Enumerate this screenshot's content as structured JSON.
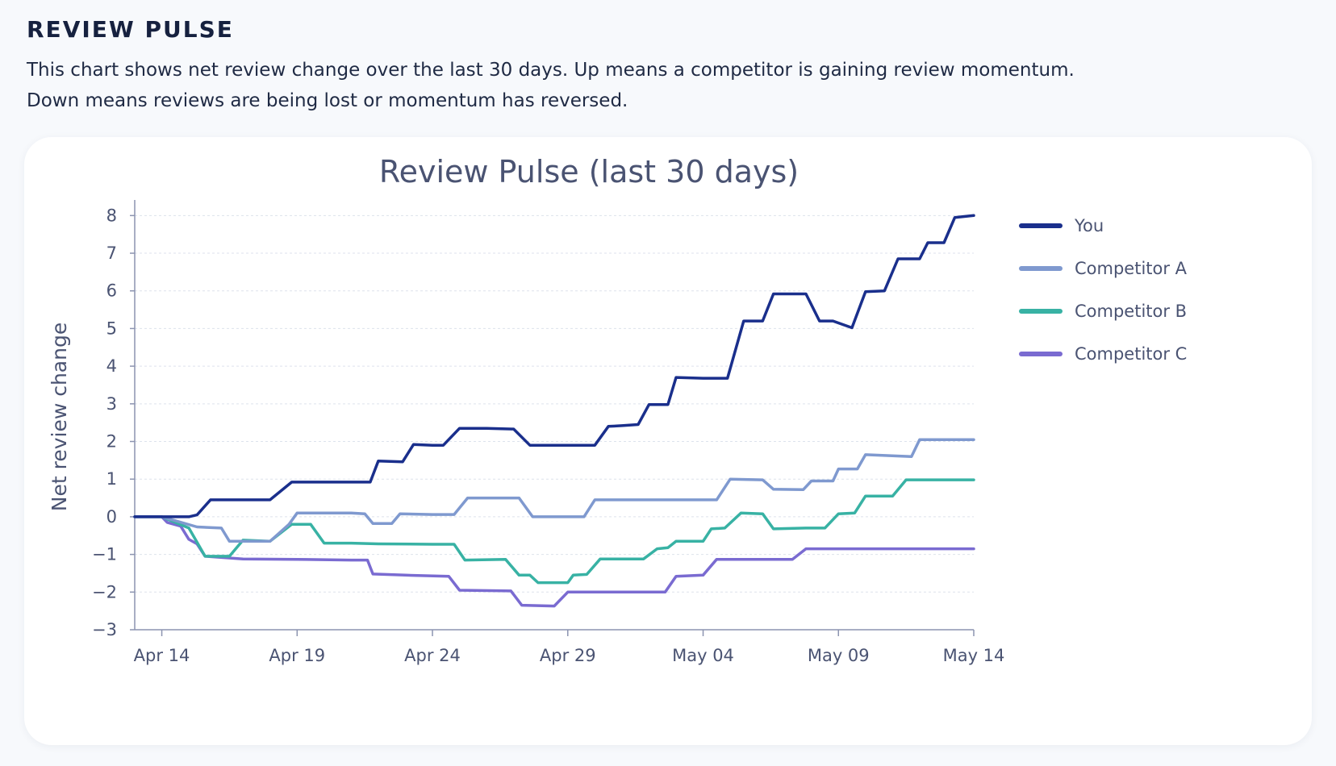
{
  "header": {
    "title": "REVIEW PULSE",
    "description_line1": "This chart shows net review change over the last 30 days. Up means a competitor is gaining review momentum.",
    "description_line2": "Down means reviews are being lost or momentum has reversed."
  },
  "chart_data": {
    "type": "line",
    "title": "Review Pulse (last 30 days)",
    "xlabel": "",
    "ylabel": "Net review change",
    "x_ticks": [
      "Apr 14",
      "Apr 19",
      "Apr 24",
      "Apr 29",
      "May 04",
      "May 09",
      "May 14"
    ],
    "y_ticks": [
      8,
      7,
      6,
      5,
      4,
      3,
      2,
      1,
      0,
      -1,
      -2,
      -3
    ],
    "ylim": [
      -3,
      8.2
    ],
    "xlim": [
      "2024-04-13",
      "2024-05-14"
    ],
    "grid": true,
    "legend_position": "right",
    "series": [
      {
        "name": "You",
        "color": "#1a2f8c",
        "points": [
          [
            "2024-04-13",
            0
          ],
          [
            "2024-04-14",
            0
          ],
          [
            "2024-04-15",
            0
          ],
          [
            "2024-04-15.3",
            0.05
          ],
          [
            "2024-04-15.8",
            0.45
          ],
          [
            "2024-04-17",
            0.45
          ],
          [
            "2024-04-18",
            0.45
          ],
          [
            "2024-04-18.8",
            0.92
          ],
          [
            "2024-04-20",
            0.92
          ],
          [
            "2024-04-21",
            0.92
          ],
          [
            "2024-04-21.7",
            0.92
          ],
          [
            "2024-04-22",
            1.48
          ],
          [
            "2024-04-22.9",
            1.46
          ],
          [
            "2024-04-23.3",
            1.92
          ],
          [
            "2024-04-24",
            1.9
          ],
          [
            "2024-04-24.4",
            1.9
          ],
          [
            "2024-04-25",
            2.35
          ],
          [
            "2024-04-26",
            2.35
          ],
          [
            "2024-04-27",
            2.33
          ],
          [
            "2024-04-27.6",
            1.9
          ],
          [
            "2024-04-29",
            1.9
          ],
          [
            "2024-04-30",
            1.9
          ],
          [
            "2024-04-30.5",
            2.4
          ],
          [
            "2024-05-01",
            2.42
          ],
          [
            "2024-05-01.6",
            2.45
          ],
          [
            "2024-05-02",
            2.98
          ],
          [
            "2024-05-02.7",
            2.98
          ],
          [
            "2024-05-03",
            3.7
          ],
          [
            "2024-05-04",
            3.68
          ],
          [
            "2024-05-04.9",
            3.68
          ],
          [
            "2024-05-05.5",
            5.2
          ],
          [
            "2024-05-06.2",
            5.2
          ],
          [
            "2024-05-06.6",
            5.92
          ],
          [
            "2024-05-07",
            5.92
          ],
          [
            "2024-05-07.8",
            5.92
          ],
          [
            "2024-05-08.3",
            5.2
          ],
          [
            "2024-05-08.8",
            5.2
          ],
          [
            "2024-05-09.5",
            5.02
          ],
          [
            "2024-05-10",
            5.98
          ],
          [
            "2024-05-10.7",
            6
          ],
          [
            "2024-05-11.2",
            6.85
          ],
          [
            "2024-05-12",
            6.85
          ],
          [
            "2024-05-12.3",
            7.28
          ],
          [
            "2024-05-12.9",
            7.28
          ],
          [
            "2024-05-13.3",
            7.95
          ],
          [
            "2024-05-14",
            8
          ]
        ]
      },
      {
        "name": "Competitor A",
        "color": "#7f99cf",
        "points": [
          [
            "2024-04-13",
            0
          ],
          [
            "2024-04-14",
            0
          ],
          [
            "2024-04-15.3",
            -0.27
          ],
          [
            "2024-04-16.2",
            -0.3
          ],
          [
            "2024-04-16.5",
            -0.65
          ],
          [
            "2024-04-17.5",
            -0.65
          ],
          [
            "2024-04-18",
            -0.65
          ],
          [
            "2024-04-18.7",
            -0.2
          ],
          [
            "2024-04-19",
            0.1
          ],
          [
            "2024-04-20",
            0.1
          ],
          [
            "2024-04-21",
            0.1
          ],
          [
            "2024-04-21.5",
            0.08
          ],
          [
            "2024-04-21.8",
            -0.18
          ],
          [
            "2024-04-22.5",
            -0.18
          ],
          [
            "2024-04-22.8",
            0.08
          ],
          [
            "2024-04-24",
            0.06
          ],
          [
            "2024-04-24.8",
            0.06
          ],
          [
            "2024-04-25.3",
            0.5
          ],
          [
            "2024-04-27.2",
            0.5
          ],
          [
            "2024-04-27.7",
            0
          ],
          [
            "2024-04-29",
            0
          ],
          [
            "2024-04-29.6",
            0
          ],
          [
            "2024-04-30",
            0.45
          ],
          [
            "2024-05-01",
            0.45
          ],
          [
            "2024-05-04",
            0.45
          ],
          [
            "2024-05-04.5",
            0.45
          ],
          [
            "2024-05-05",
            1
          ],
          [
            "2024-05-06.2",
            0.98
          ],
          [
            "2024-05-06.6",
            0.73
          ],
          [
            "2024-05-07.7",
            0.72
          ],
          [
            "2024-05-08",
            0.95
          ],
          [
            "2024-05-08.8",
            0.95
          ],
          [
            "2024-05-09",
            1.27
          ],
          [
            "2024-05-09.7",
            1.27
          ],
          [
            "2024-05-10",
            1.65
          ],
          [
            "2024-05-11.7",
            1.6
          ],
          [
            "2024-05-12",
            2.05
          ],
          [
            "2024-05-14",
            2.05
          ]
        ]
      },
      {
        "name": "Competitor B",
        "color": "#38b2a4",
        "points": [
          [
            "2024-04-13",
            0
          ],
          [
            "2024-04-14",
            0
          ],
          [
            "2024-04-15",
            -0.3
          ],
          [
            "2024-04-15.6",
            -1.05
          ],
          [
            "2024-04-16.5",
            -1.05
          ],
          [
            "2024-04-17",
            -0.62
          ],
          [
            "2024-04-18",
            -0.65
          ],
          [
            "2024-04-18.8",
            -0.2
          ],
          [
            "2024-04-19.5",
            -0.2
          ],
          [
            "2024-04-20",
            -0.7
          ],
          [
            "2024-04-21",
            -0.7
          ],
          [
            "2024-04-22",
            -0.72
          ],
          [
            "2024-04-24",
            -0.73
          ],
          [
            "2024-04-24.8",
            -0.73
          ],
          [
            "2024-04-25.2",
            -1.15
          ],
          [
            "2024-04-26.7",
            -1.13
          ],
          [
            "2024-04-27.2",
            -1.55
          ],
          [
            "2024-04-27.6",
            -1.55
          ],
          [
            "2024-04-27.9",
            -1.75
          ],
          [
            "2024-04-29",
            -1.75
          ],
          [
            "2024-04-29.2",
            -1.55
          ],
          [
            "2024-04-29.7",
            -1.53
          ],
          [
            "2024-04-30.2",
            -1.12
          ],
          [
            "2024-05-01.8",
            -1.12
          ],
          [
            "2024-05-02.3",
            -0.85
          ],
          [
            "2024-05-02.7",
            -0.82
          ],
          [
            "2024-05-03",
            -0.65
          ],
          [
            "2024-05-04",
            -0.65
          ],
          [
            "2024-05-04.3",
            -0.32
          ],
          [
            "2024-05-04.8",
            -0.3
          ],
          [
            "2024-05-05.4",
            0.1
          ],
          [
            "2024-05-06.2",
            0.08
          ],
          [
            "2024-05-06.6",
            -0.32
          ],
          [
            "2024-05-07.8",
            -0.3
          ],
          [
            "2024-05-08.5",
            -0.3
          ],
          [
            "2024-05-09",
            0.08
          ],
          [
            "2024-05-09.6",
            0.1
          ],
          [
            "2024-05-10",
            0.55
          ],
          [
            "2024-05-11",
            0.55
          ],
          [
            "2024-05-11.5",
            0.98
          ],
          [
            "2024-05-14",
            0.98
          ]
        ]
      },
      {
        "name": "Competitor C",
        "color": "#7a6bd1",
        "points": [
          [
            "2024-04-13",
            0
          ],
          [
            "2024-04-14",
            0
          ],
          [
            "2024-04-14.2",
            -0.15
          ],
          [
            "2024-04-14.7",
            -0.25
          ],
          [
            "2024-04-15",
            -0.6
          ],
          [
            "2024-04-15.3",
            -0.72
          ],
          [
            "2024-04-15.6",
            -1.05
          ],
          [
            "2024-04-17",
            -1.12
          ],
          [
            "2024-04-19",
            -1.13
          ],
          [
            "2024-04-21",
            -1.15
          ],
          [
            "2024-04-21.6",
            -1.15
          ],
          [
            "2024-04-21.8",
            -1.52
          ],
          [
            "2024-04-23",
            -1.55
          ],
          [
            "2024-04-24.6",
            -1.58
          ],
          [
            "2024-04-25",
            -1.95
          ],
          [
            "2024-04-26.9",
            -1.97
          ],
          [
            "2024-04-27.3",
            -2.35
          ],
          [
            "2024-04-28.5",
            -2.37
          ],
          [
            "2024-04-29",
            -2
          ],
          [
            "2024-05-02",
            -2
          ],
          [
            "2024-05-02.6",
            -2
          ],
          [
            "2024-05-03",
            -1.58
          ],
          [
            "2024-05-04",
            -1.55
          ],
          [
            "2024-05-04.5",
            -1.13
          ],
          [
            "2024-05-06",
            -1.13
          ],
          [
            "2024-05-07.3",
            -1.13
          ],
          [
            "2024-05-07.8",
            -0.85
          ],
          [
            "2024-05-10",
            -0.85
          ],
          [
            "2024-05-14",
            -0.85
          ]
        ]
      }
    ]
  }
}
